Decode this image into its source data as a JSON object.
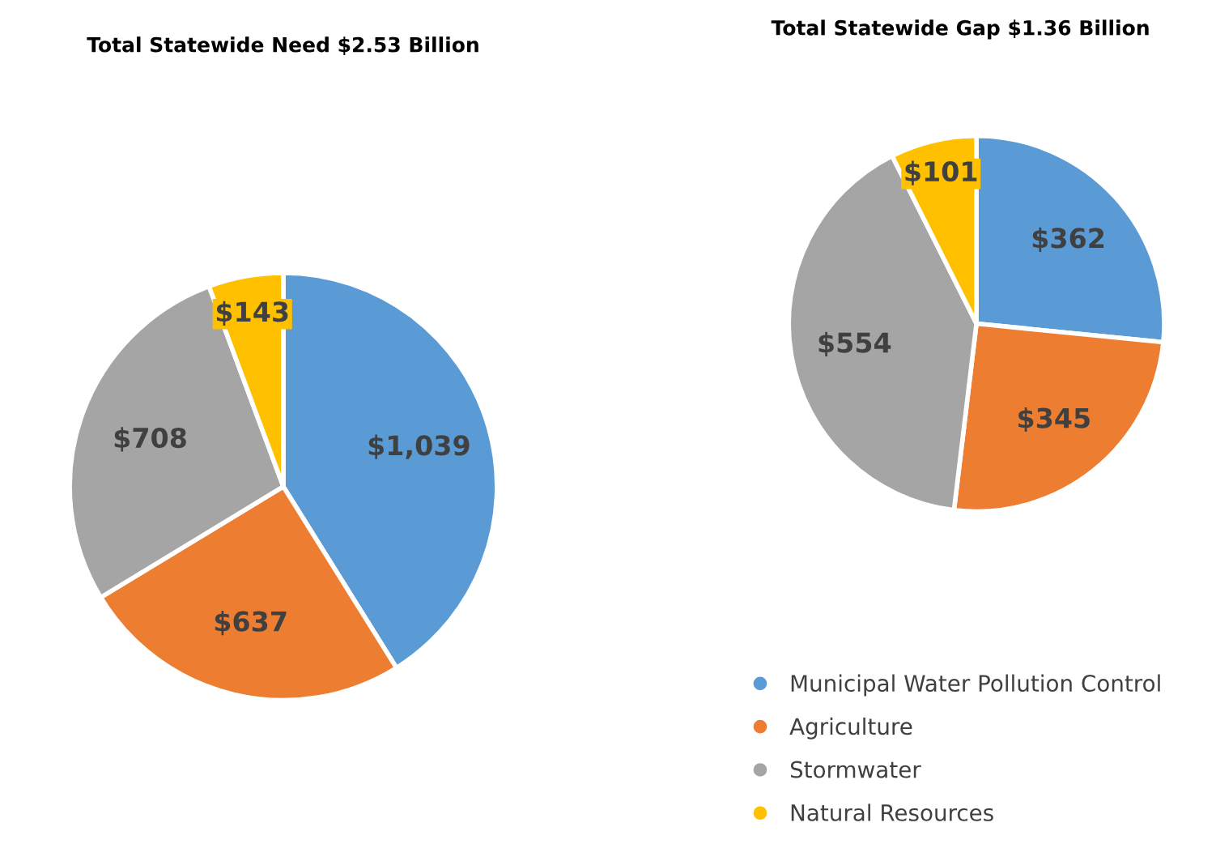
{
  "chart_data": [
    {
      "type": "pie",
      "title": "Total Statewide Need $2.53 Billion",
      "categories": [
        "Municipal Water Pollution Control",
        "Agriculture",
        "Stormwater",
        "Natural Resources"
      ],
      "values": [
        1039,
        637,
        708,
        143
      ],
      "value_labels": [
        "$1,039",
        "$637",
        "$708",
        "$143"
      ],
      "colors": [
        "#5b9bd5",
        "#ed7d31",
        "#a5a5a5",
        "#ffc000"
      ],
      "legend": "bottom right"
    },
    {
      "type": "pie",
      "title": "Total Statewide Gap $1.36 Billion",
      "categories": [
        null,
        null,
        null,
        null
      ],
      "values": [
        362,
        345,
        554,
        101
      ],
      "value_labels": [
        "$362",
        "$345",
        "$554",
        "$101"
      ],
      "colors": [
        "#5b9bd5",
        "#ed7d31",
        "#a5a5a5",
        "#ffc000"
      ]
    }
  ]
}
